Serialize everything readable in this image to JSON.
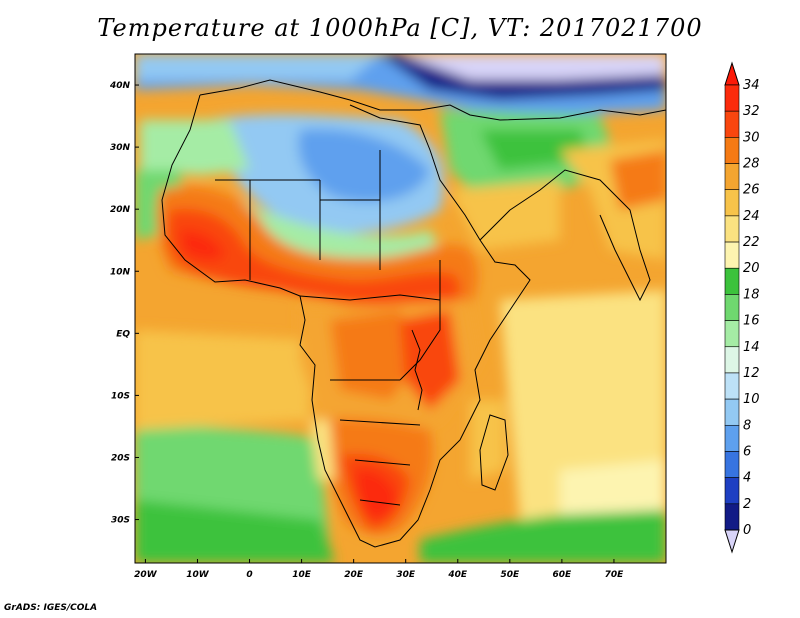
{
  "title": "Temperature at 1000hPa [C], VT: 2017021700",
  "credit": "GrADS: IGES/COLA",
  "lat_labels": [
    "40N",
    "30N",
    "20N",
    "10N",
    "EQ",
    "10S",
    "20S",
    "30S"
  ],
  "lon_labels": [
    "20W",
    "10W",
    "0",
    "10E",
    "20E",
    "30E",
    "40E",
    "50E",
    "60E",
    "70E"
  ],
  "colorbar": {
    "labels": [
      "34",
      "32",
      "30",
      "28",
      "26",
      "24",
      "22",
      "20",
      "18",
      "16",
      "14",
      "12",
      "10",
      "8",
      "6",
      "4",
      "2",
      "0"
    ],
    "colors": [
      "#fc2b0c",
      "#f9460e",
      "#f57a14",
      "#f4a530",
      "#f7c34a",
      "#fbe281",
      "#fdf4b0",
      "#3cc23c",
      "#6fd86f",
      "#a5eca5",
      "#ddf6e6",
      "#bde1f7",
      "#93c9f3",
      "#5ea0ee",
      "#3774e0",
      "#1e3fc2",
      "#121b86",
      "#d8d4f8",
      "#fc1a08"
    ]
  },
  "map_extent": {
    "lon": [
      -22,
      80
    ],
    "lat": [
      -37,
      45
    ]
  }
}
